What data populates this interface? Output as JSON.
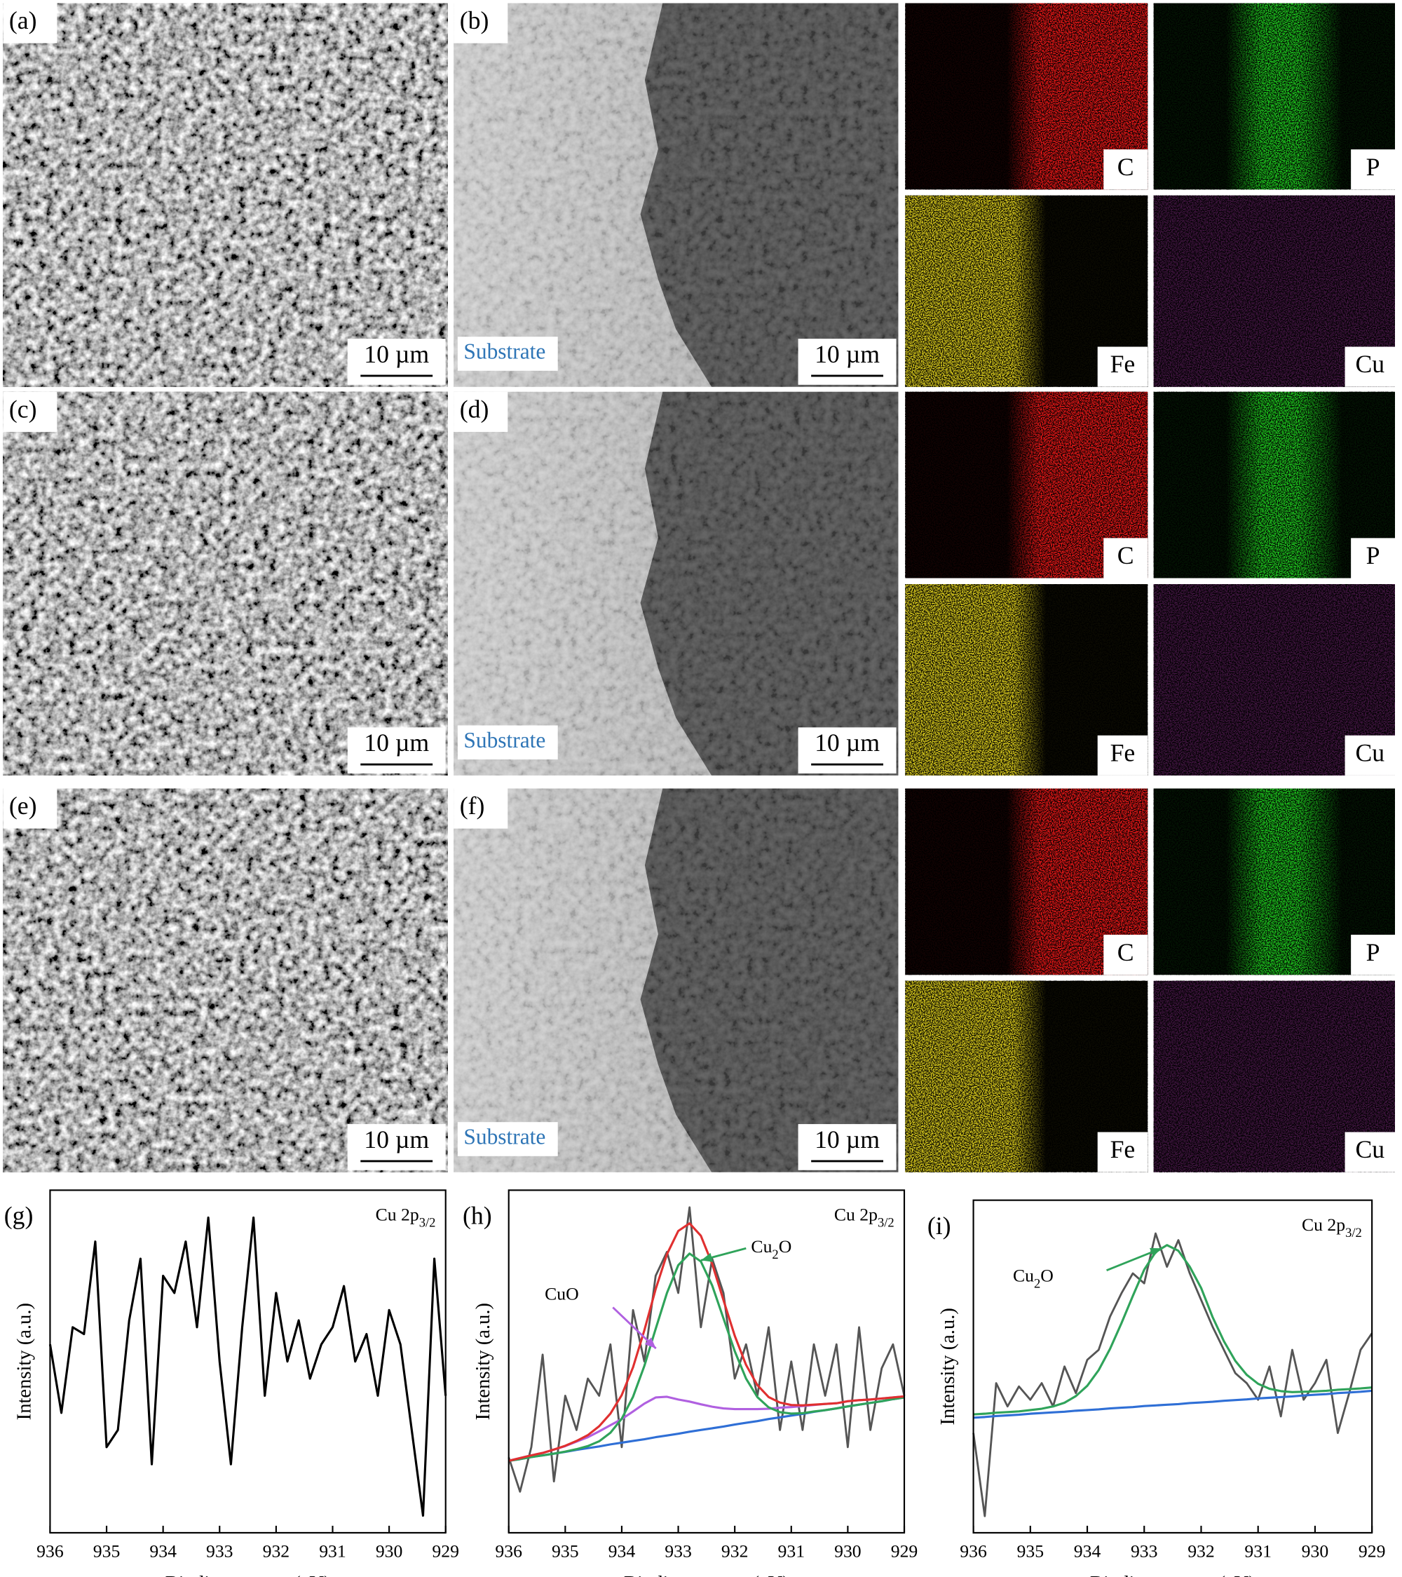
{
  "panels": [
    {
      "label": "(a)",
      "scale_bar": "10 µm"
    },
    {
      "label": "(b)",
      "scale_bar": "10 µm",
      "annotation": "Substrate"
    },
    {
      "label": "(c)",
      "scale_bar": "10 µm"
    },
    {
      "label": "(d)",
      "scale_bar": "10 µm",
      "annotation": "Substrate"
    },
    {
      "label": "(e)",
      "scale_bar": "10 µm"
    },
    {
      "label": "(f)",
      "scale_bar": "10 µm",
      "annotation": "Substrate"
    }
  ],
  "maps": [
    {
      "labels": [
        "C",
        "P",
        "Fe",
        "Cu"
      ]
    },
    {
      "labels": [
        "C",
        "P",
        "Fe",
        "Cu"
      ]
    },
    {
      "labels": [
        "C",
        "P",
        "Fe",
        "Cu"
      ]
    }
  ],
  "chart_data": [
    {
      "type": "line",
      "panel_label": "(g)",
      "annotation": [
        "Cu 2p",
        "3/2"
      ],
      "x_label": "Binding energy (eV)",
      "y_label": "Intensity (a.u.)",
      "x": [
        936,
        935.8,
        935.6,
        935.4,
        935.2,
        935,
        934.8,
        934.6,
        934.4,
        934.2,
        934,
        933.8,
        933.6,
        933.4,
        933.2,
        933,
        932.8,
        932.6,
        932.4,
        932.2,
        932,
        931.8,
        931.6,
        931.4,
        931.2,
        931,
        930.8,
        930.6,
        930.4,
        930.2,
        930,
        929.8,
        929.6,
        929.4,
        929.2,
        929
      ],
      "values": [
        55,
        35,
        60,
        58,
        85,
        25,
        30,
        62,
        80,
        20,
        75,
        70,
        85,
        60,
        92,
        50,
        20,
        60,
        92,
        40,
        70,
        50,
        62,
        45,
        55,
        60,
        72,
        50,
        58,
        40,
        65,
        55,
        30,
        5,
        80,
        40
      ],
      "color": "#000000",
      "xlim": [
        936,
        929
      ],
      "xticks": [
        936,
        935,
        934,
        933,
        932,
        931,
        930,
        929
      ],
      "ylim": [
        0,
        100
      ]
    },
    {
      "type": "line",
      "panel_label": "(h)",
      "annotation": [
        "Cu 2p",
        "3/2"
      ],
      "x_label": "Binding energy (eV)",
      "y_label": "Intensity (a.u.)",
      "x": [
        936,
        935.8,
        935.6,
        935.4,
        935.2,
        935,
        934.8,
        934.6,
        934.4,
        934.2,
        934,
        933.8,
        933.6,
        933.4,
        933.2,
        933,
        932.8,
        932.6,
        932.4,
        932.2,
        932,
        931.8,
        931.6,
        931.4,
        931.2,
        931,
        930.8,
        930.6,
        930.4,
        930.2,
        930,
        929.8,
        929.6,
        929.4,
        929.2,
        929
      ],
      "series": [
        {
          "color": "#555555",
          "values": [
            22,
            12,
            25,
            52,
            15,
            40,
            30,
            45,
            40,
            55,
            25,
            65,
            50,
            75,
            82,
            70,
            95,
            60,
            80,
            70,
            45,
            55,
            40,
            60,
            30,
            50,
            30,
            55,
            40,
            55,
            25,
            60,
            30,
            48,
            55,
            40
          ]
        },
        {
          "color": "#2f6fd6",
          "values": [
            21,
            21.5,
            22.1,
            22.6,
            23.1,
            23.6,
            24.2,
            24.7,
            25.2,
            25.8,
            26.3,
            26.8,
            27.3,
            27.9,
            28.4,
            28.9,
            29.5,
            30,
            30.5,
            31,
            31.6,
            32.1,
            32.6,
            33.2,
            33.7,
            34.2,
            34.7,
            35.3,
            35.8,
            36.3,
            36.9,
            37.4,
            37.9,
            38.4,
            39,
            39.5
          ]
        },
        {
          "color": "#b060e0",
          "values": [
            21,
            21.8,
            22.6,
            23.3,
            24.3,
            25.3,
            26.6,
            27.9,
            29.6,
            31.4,
            33.2,
            35.4,
            37.7,
            39.5,
            39.7,
            38.9,
            38.3,
            37.5,
            36.8,
            36.3,
            36.1,
            36.1,
            36.1,
            36.2,
            36.5,
            36.7,
            37,
            37.3,
            37.6,
            37.8,
            38.4,
            38.7,
            38.9,
            39.2,
            39.5,
            39.8
          ]
        },
        {
          "color": "#2fa35a",
          "values": [
            21,
            21.5,
            22.1,
            22.6,
            23.1,
            23.7,
            24.4,
            25.3,
            26.7,
            29.2,
            33.3,
            39.7,
            48.7,
            59.5,
            70,
            78.1,
            81.5,
            79.2,
            72.2,
            62.6,
            53,
            45,
            39.6,
            36.6,
            35.2,
            34.8,
            34.9,
            35.4,
            35.8,
            36.3,
            36.9,
            37.4,
            37.9,
            38.4,
            39,
            39.5
          ]
        },
        {
          "color": "#e03030",
          "values": [
            21,
            21.8,
            22.6,
            23.3,
            24.3,
            25.4,
            26.8,
            28.5,
            31.1,
            34.8,
            40.2,
            48.3,
            59.1,
            71.1,
            81.3,
            88.1,
            90.3,
            86.7,
            78.5,
            67.9,
            57.5,
            49,
            43.1,
            39.6,
            38,
            37.3,
            37.2,
            37.4,
            37.6,
            37.8,
            38.4,
            38.7,
            38.9,
            39.2,
            39.5,
            39.8
          ]
        }
      ],
      "annotations": [
        {
          "parts": [
            "CuO"
          ],
          "color": "#b060e0"
        },
        {
          "parts": [
            "Cu",
            "2",
            "O"
          ],
          "color": "#2fa35a"
        }
      ],
      "xlim": [
        936,
        929
      ],
      "xticks": [
        936,
        935,
        934,
        933,
        932,
        931,
        930,
        929
      ],
      "ylim": [
        0,
        100
      ]
    },
    {
      "type": "line",
      "panel_label": "(i)",
      "annotation": [
        "Cu 2p",
        "3/2"
      ],
      "x_label": "Binding energy (eV)",
      "y_label": "Intensity (a.u.)",
      "x": [
        936,
        935.8,
        935.6,
        935.4,
        935.2,
        935,
        934.8,
        934.6,
        934.4,
        934.2,
        934,
        933.8,
        933.6,
        933.4,
        933.2,
        933,
        932.8,
        932.6,
        932.4,
        932.2,
        932,
        931.8,
        931.6,
        931.4,
        931.2,
        931,
        930.8,
        930.6,
        930.4,
        930.2,
        930,
        929.8,
        929.6,
        929.4,
        929.2,
        929
      ],
      "series": [
        {
          "color": "#555555",
          "values": [
            30,
            5,
            45,
            38,
            44,
            40,
            45,
            38,
            50,
            42,
            52,
            55,
            65,
            72,
            78,
            75,
            90,
            80,
            88,
            78,
            70,
            62,
            55,
            48,
            45,
            40,
            50,
            35,
            55,
            40,
            45,
            52,
            30,
            42,
            55,
            60
          ]
        },
        {
          "color": "#2f6fd6",
          "values": [
            34.6,
            34.8,
            35.1,
            35.3,
            35.5,
            35.8,
            36,
            36.2,
            36.4,
            36.7,
            36.9,
            37.1,
            37.4,
            37.6,
            37.8,
            38.1,
            38.3,
            38.5,
            38.7,
            39,
            39.2,
            39.4,
            39.7,
            39.9,
            40.1,
            40.4,
            40.6,
            40.8,
            41,
            41.3,
            41.5,
            41.7,
            42,
            42.2,
            42.4,
            42.7
          ]
        },
        {
          "color": "#2fa35a",
          "values": [
            35.6,
            35.8,
            36.1,
            36.3,
            36.5,
            36.9,
            37.3,
            38,
            39.1,
            41.1,
            44.2,
            48.9,
            55.3,
            63,
            71.2,
            79.1,
            84.4,
            86.5,
            84.8,
            80,
            73.6,
            64.9,
            57.6,
            51.7,
            47.5,
            44.8,
            43.3,
            42.6,
            42.3,
            42.4,
            42.5,
            42.7,
            43,
            43.2,
            43.4,
            43.7
          ]
        }
      ],
      "annotations": [
        {
          "parts": [
            "Cu",
            "2",
            "O"
          ],
          "color": "#2fa35a"
        }
      ],
      "xlim": [
        936,
        929
      ],
      "xticks": [
        936,
        935,
        934,
        933,
        932,
        931,
        930,
        929
      ],
      "ylim": [
        0,
        100
      ]
    }
  ]
}
